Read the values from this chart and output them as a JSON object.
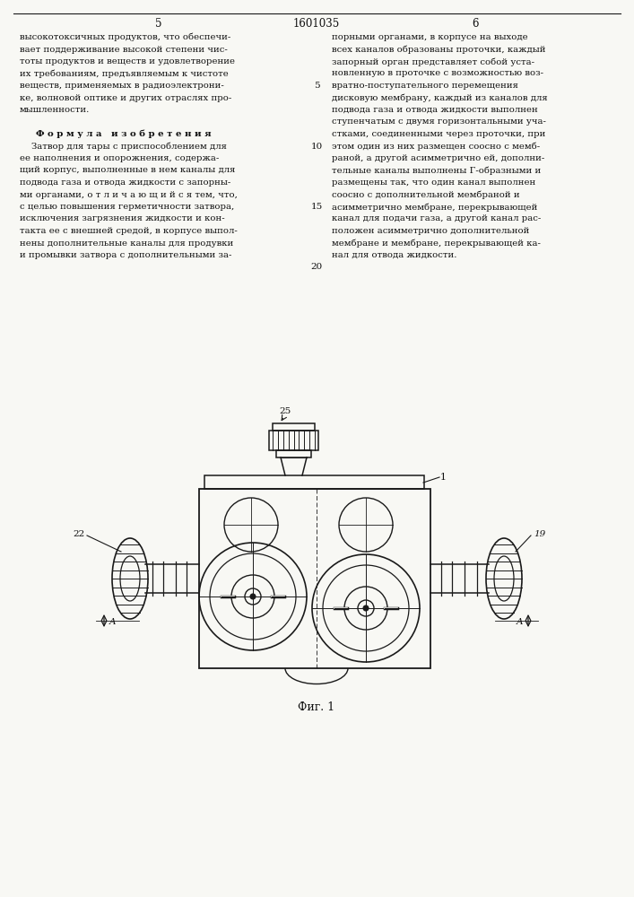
{
  "page_width": 7.07,
  "page_height": 10.0,
  "bg_color": "#f8f8f4",
  "line_color": "#1a1a1a",
  "text_color": "#111111",
  "page_num_left": "5",
  "page_num_center": "1601035",
  "page_num_right": "6",
  "fig_label": "Фиг. 1"
}
